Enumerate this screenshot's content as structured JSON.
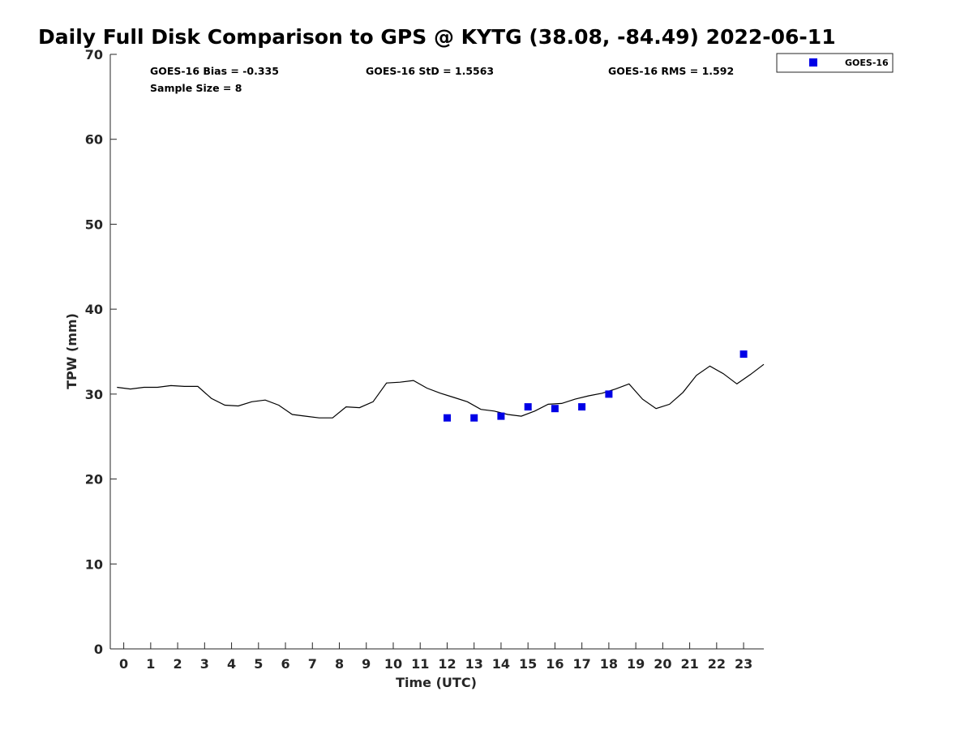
{
  "chart_data": {
    "type": "scatter",
    "title": "Daily Full Disk Comparison to GPS @ KYTG (38.08, -84.49) 2022-06-11",
    "xlabel": "Time (UTC)",
    "ylabel": "TPW (mm)",
    "xlim": [
      -0.5,
      23.75
    ],
    "ylim": [
      0,
      70
    ],
    "x_ticks": [
      0,
      1,
      2,
      3,
      4,
      5,
      6,
      7,
      8,
      9,
      10,
      11,
      12,
      13,
      14,
      15,
      16,
      17,
      18,
      19,
      20,
      21,
      22,
      23
    ],
    "x_tick_labels": [
      "0",
      "1",
      "2",
      "3",
      "4",
      "5",
      "6",
      "7",
      "8",
      "9",
      "10",
      "11",
      "12",
      "13",
      "14",
      "15",
      "16",
      "17",
      "18",
      "19",
      "20",
      "21",
      "22",
      "23"
    ],
    "y_ticks": [
      0,
      10,
      20,
      30,
      40,
      50,
      60,
      70
    ],
    "y_tick_labels": [
      "0",
      "10",
      "20",
      "30",
      "40",
      "50",
      "60",
      "70"
    ],
    "grid": false,
    "legend_position": "outside-top-right",
    "stats": {
      "bias": "GOES-16 Bias = -0.335",
      "std": "GOES-16 StD = 1.5563",
      "rms": "GOES-16 RMS = 1.592",
      "sample": "Sample Size = 8"
    },
    "series": [
      {
        "kind": "line",
        "color": "#000000",
        "x": [
          -0.25,
          0.25,
          0.75,
          1.25,
          1.75,
          2.25,
          2.75,
          3.25,
          3.75,
          4.25,
          4.75,
          5.25,
          5.75,
          6.25,
          6.75,
          7.25,
          7.75,
          8.25,
          8.75,
          9.25,
          9.75,
          10.25,
          10.75,
          11.25,
          11.75,
          12.25,
          12.75,
          13.25,
          13.75,
          14.25,
          14.75,
          15.25,
          15.75,
          16.25,
          16.75,
          17.25,
          17.75,
          18.25,
          18.75,
          19.25,
          19.75,
          20.25,
          20.75,
          21.25,
          21.75,
          22.25,
          22.75,
          23.25,
          23.75
        ],
        "y": [
          30.8,
          30.6,
          30.8,
          30.8,
          31.0,
          30.9,
          30.9,
          29.5,
          28.7,
          28.6,
          29.1,
          29.3,
          28.7,
          27.6,
          27.4,
          27.2,
          27.2,
          28.5,
          28.4,
          29.1,
          31.3,
          31.4,
          31.6,
          30.7,
          30.1,
          29.6,
          29.1,
          28.2,
          28.0,
          27.6,
          27.4,
          28.0,
          28.8,
          28.9,
          29.4,
          29.8,
          30.1,
          30.6,
          31.2,
          29.4,
          28.3,
          28.8,
          30.2,
          32.2,
          33.3,
          32.4,
          31.2,
          32.3,
          33.5
        ]
      },
      {
        "kind": "markers",
        "name": "GOES-16",
        "color": "#0000e6",
        "x": [
          12,
          13,
          14,
          15,
          16,
          17,
          18,
          23
        ],
        "y": [
          27.2,
          27.2,
          27.4,
          28.5,
          28.3,
          28.5,
          30.0,
          34.7
        ]
      }
    ]
  }
}
